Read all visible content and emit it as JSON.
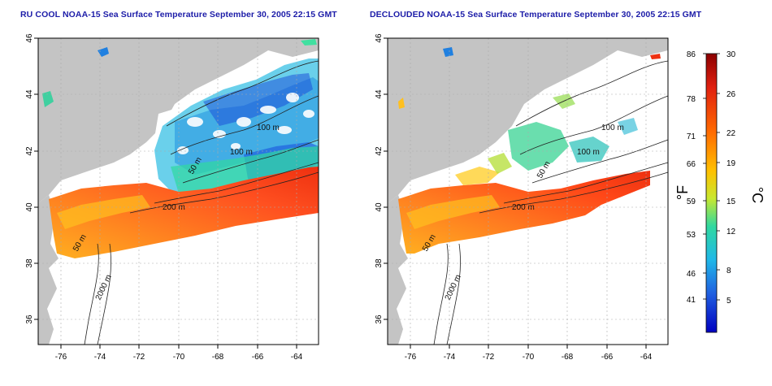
{
  "panels": [
    {
      "title": "RU COOL NOAA-15 Sea Surface Temperature September 30, 2005 22:15 GMT",
      "x_ticks": [
        "-76",
        "-74",
        "-72",
        "-70",
        "-68",
        "-66",
        "-64"
      ],
      "y_ticks": [
        "36",
        "38",
        "40",
        "42",
        "44",
        "46"
      ],
      "contour_labels": [
        "100 m",
        "100 m",
        "50 m",
        "200 m",
        "50 m",
        "2000 m"
      ]
    },
    {
      "title": "DECLOUDED NOAA-15 Sea Surface Temperature September 30, 2005 22:15 GMT",
      "x_ticks": [
        "-76",
        "-74",
        "-72",
        "-70",
        "-68",
        "-66",
        "-64"
      ],
      "y_ticks": [
        "36",
        "38",
        "40",
        "42",
        "44",
        "46"
      ],
      "contour_labels": [
        "100 m",
        "100 m",
        "50 m",
        "200 m",
        "50 m",
        "2000 m"
      ]
    }
  ],
  "colorbar": {
    "fahrenheit_ticks": [
      "86",
      "78",
      "71",
      "66",
      "59",
      "53",
      "46",
      "41"
    ],
    "celsius_ticks": [
      "30",
      "26",
      "22",
      "19",
      "15",
      "12",
      "8",
      "5"
    ],
    "fahrenheit_unit": "°F",
    "celsius_unit": "°C",
    "colors": [
      "#8b0000",
      "#e02010",
      "#ff6a00",
      "#ffc000",
      "#c8e830",
      "#30d8a0",
      "#20b8e8",
      "#2060e0",
      "#0000c0"
    ]
  },
  "map_colors": {
    "land": "#c4c4c4",
    "cloud": "#ffffff",
    "contour": "#222222",
    "grid": "#aaaaaa"
  }
}
